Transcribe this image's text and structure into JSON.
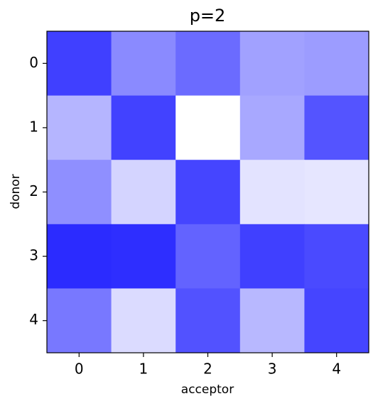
{
  "chart_data": {
    "type": "heatmap",
    "title": "p=2",
    "x_label": "acceptor",
    "y_label": "donor",
    "x_categories": [
      "0",
      "1",
      "2",
      "3",
      "4"
    ],
    "y_categories": [
      "0",
      "1",
      "2",
      "3",
      "4"
    ],
    "color": "#0000ff",
    "values": [
      [
        0.75,
        0.46,
        0.58,
        0.37,
        0.39
      ],
      [
        0.29,
        0.74,
        0,
        0.34,
        0.67
      ],
      [
        0.44,
        0.17,
        0.73,
        0.11,
        0.1
      ],
      [
        0.83,
        0.82,
        0.61,
        0.75,
        0.71
      ],
      [
        0.53,
        0.14,
        0.68,
        0.28,
        0.73
      ]
    ]
  }
}
